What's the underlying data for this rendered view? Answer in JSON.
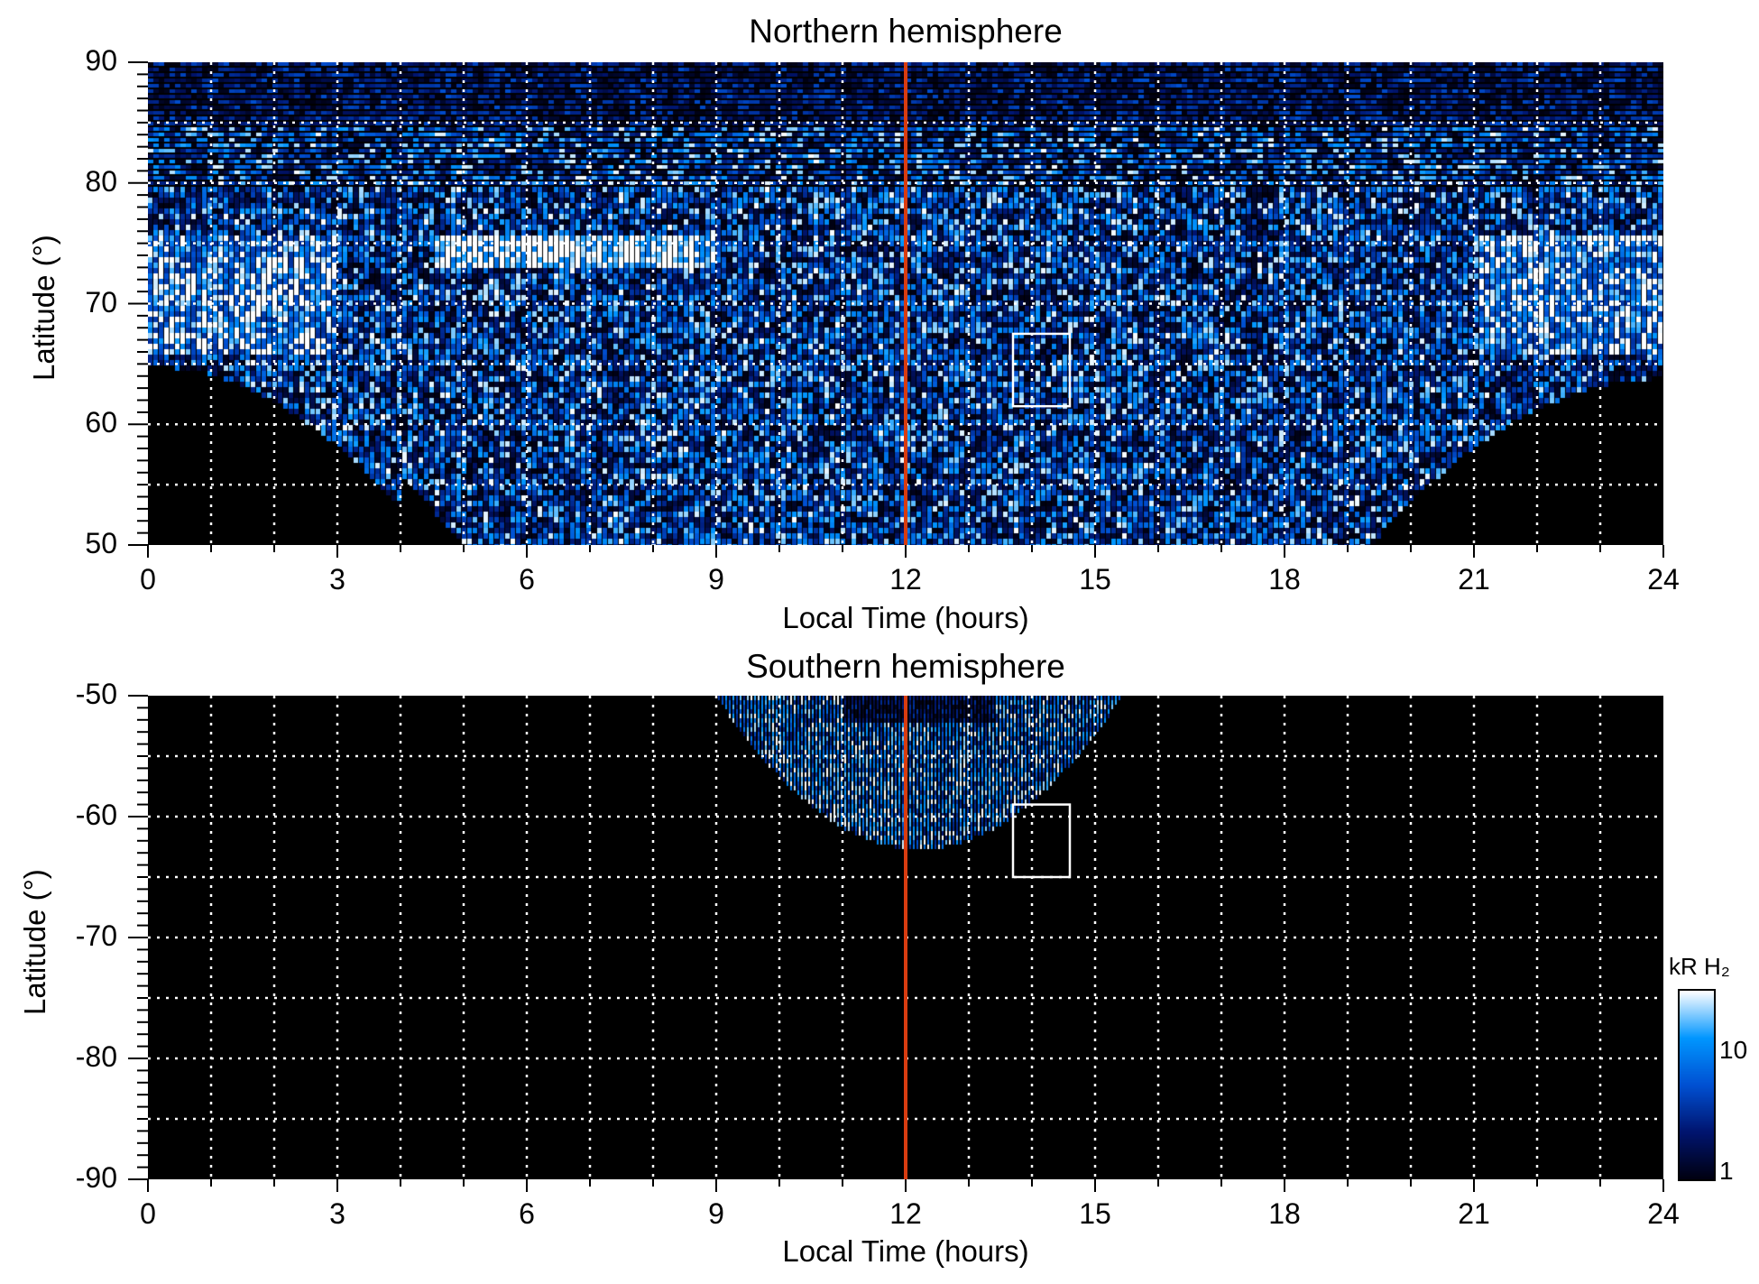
{
  "chart_data": [
    {
      "type": "heatmap",
      "title": "Northern hemisphere",
      "xlabel": "Local Time (hours)",
      "ylabel": "Latitude (°)",
      "xlim": [
        0,
        24
      ],
      "ylim": [
        50,
        90
      ],
      "xticks": [
        "0",
        "3",
        "6",
        "9",
        "12",
        "15",
        "18",
        "21",
        "24"
      ],
      "yticks": [
        "50",
        "60",
        "70",
        "80",
        "90"
      ],
      "grid": true,
      "noon_line_lt": 12,
      "box": {
        "lt": [
          13.7,
          14.6
        ],
        "lat": [
          61.5,
          67.5
        ]
      }
    },
    {
      "type": "heatmap",
      "title": "Southern hemisphere",
      "xlabel": "Local Time (hours)",
      "ylabel": "Latitude (°)",
      "xlim": [
        0,
        24
      ],
      "ylim": [
        -90,
        -50
      ],
      "xticks": [
        "0",
        "3",
        "6",
        "9",
        "12",
        "15",
        "18",
        "21",
        "24"
      ],
      "yticks": [
        "-90",
        "-80",
        "-70",
        "-60",
        "-50"
      ],
      "grid": true,
      "noon_line_lt": 12,
      "box": {
        "lt": [
          13.7,
          14.6
        ],
        "lat": [
          -65,
          -59
        ]
      }
    }
  ],
  "colorbar": {
    "label": "kR H₂",
    "ticks": [
      "1",
      "10"
    ],
    "range": [
      1,
      30
    ],
    "scale": "log"
  },
  "colors": {
    "line": "#d83c10",
    "box": "#ffffff",
    "low": "#000010",
    "mid": "#0050d0",
    "high": "#ffffff"
  }
}
